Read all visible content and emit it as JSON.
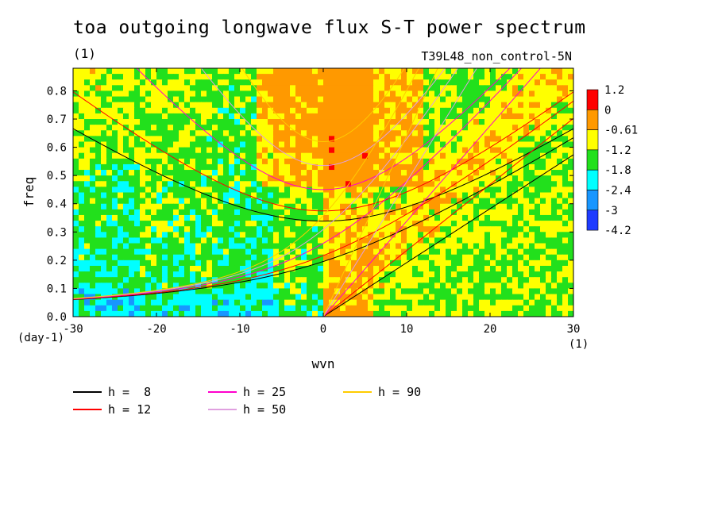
{
  "chart_data": {
    "type": "heatmap",
    "title": "toa outgoing longwave flux S-T power spectrum",
    "units_label": "(1)",
    "run_label": "T39L48_non_control-5N",
    "xlabel": "wvn",
    "ylabel": "freq",
    "x_unit": "(1)",
    "y_unit": "(day-1)",
    "xlim": [
      -30,
      30
    ],
    "ylim": [
      0,
      0.88
    ],
    "x_ticks": [
      -30,
      -20,
      -10,
      0,
      10,
      20,
      30
    ],
    "y_ticks": [
      0.0,
      0.1,
      0.2,
      0.3,
      0.4,
      0.5,
      0.6,
      0.7,
      0.8
    ],
    "x_tick_labels": [
      "-30",
      "-20",
      "-10",
      "0",
      "10",
      "20",
      "30"
    ],
    "y_tick_labels": [
      "0.0",
      "0.1",
      "0.2",
      "0.3",
      "0.4",
      "0.5",
      "0.6",
      "0.7",
      "0.8"
    ],
    "colorbar": {
      "labels": [
        "1.2",
        "0",
        "-0.61",
        "-1.2",
        "-1.8",
        "-2.4",
        "-3",
        "-4.2"
      ],
      "colors": [
        "#ff0000",
        "#ff9900",
        "#ffff00",
        "#22e01c",
        "#00ffff",
        "#1896ff",
        "#1e3cff"
      ]
    },
    "dispersion_curves": [
      {
        "name": "h =  8",
        "h": 8,
        "color": "#000000"
      },
      {
        "name": "h = 12",
        "h": 12,
        "color": "#ff0000"
      },
      {
        "name": "h = 25",
        "h": 25,
        "color": "#ff00cc"
      },
      {
        "name": "h = 50",
        "h": 50,
        "color": "#e0a0e0"
      },
      {
        "name": "h = 90",
        "h": 90,
        "color": "#ffcc00"
      }
    ]
  }
}
